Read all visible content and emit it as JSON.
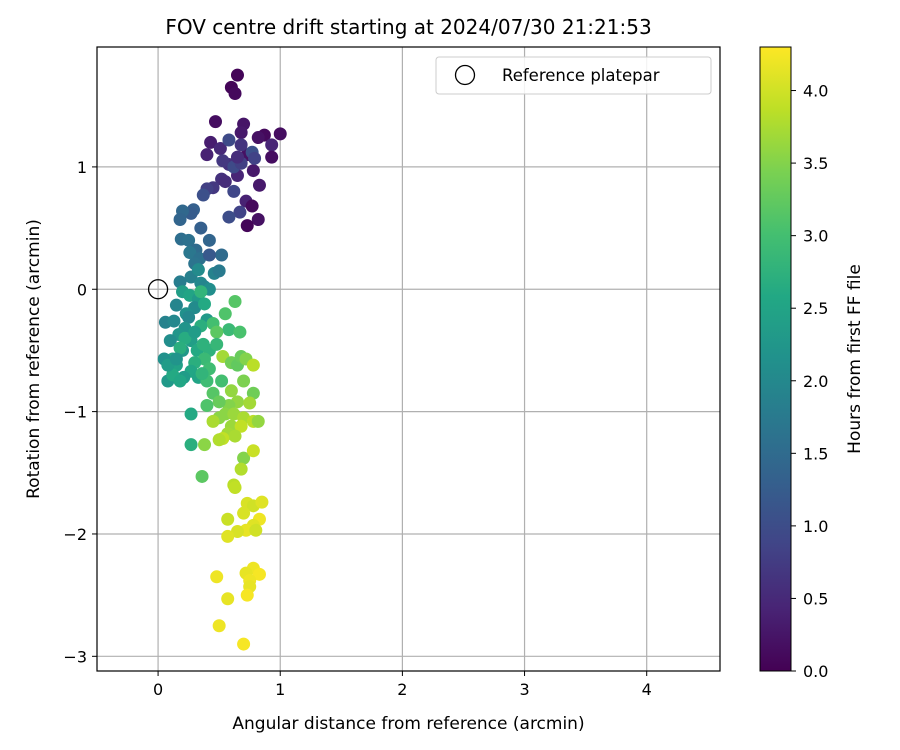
{
  "chart_data": {
    "type": "scatter",
    "title": "FOV centre drift starting at 2024/07/30 21:21:53",
    "xlabel": "Angular distance from reference (arcmin)",
    "ylabel": "Rotation from reference (arcmin)",
    "xlim": [
      -0.5,
      4.6
    ],
    "ylim": [
      -3.12,
      1.98
    ],
    "xticks": [
      0,
      1,
      2,
      3,
      4
    ],
    "yticks": [
      -3,
      -2,
      -1,
      0,
      1
    ],
    "xtick_labels": [
      "0",
      "1",
      "2",
      "3",
      "4"
    ],
    "ytick_labels": [
      "−3",
      "−2",
      "−1",
      "0",
      "1"
    ],
    "grid": true,
    "legend": {
      "placement": "top-right",
      "label": "Reference platepar"
    },
    "reference_point": {
      "x": 0,
      "y": 0
    },
    "colorbar": {
      "label": "Hours from first FF file",
      "colormap": "viridis",
      "range": [
        0.0,
        4.3
      ],
      "ticks": [
        0.0,
        0.5,
        1.0,
        1.5,
        2.0,
        2.5,
        3.0,
        3.5,
        4.0
      ],
      "tick_labels": [
        "0.0",
        "0.5",
        "1.0",
        "1.5",
        "2.0",
        "2.5",
        "3.0",
        "3.5",
        "4.0"
      ]
    },
    "series": [
      {
        "points": [
          [
            0.65,
            1.75,
            0.05
          ],
          [
            0.6,
            1.65,
            0.05
          ],
          [
            0.63,
            1.6,
            0.1
          ],
          [
            0.47,
            1.37,
            0.15
          ],
          [
            0.7,
            1.35,
            0.25
          ],
          [
            1.0,
            1.27,
            0.15
          ],
          [
            0.87,
            1.26,
            0.1
          ],
          [
            0.82,
            1.24,
            0.2
          ],
          [
            0.68,
            1.28,
            0.3
          ],
          [
            0.4,
            1.1,
            0.4
          ],
          [
            0.43,
            1.2,
            0.35
          ],
          [
            0.93,
            1.18,
            0.45
          ],
          [
            0.51,
            1.15,
            0.5
          ],
          [
            0.58,
            1.02,
            0.6
          ],
          [
            0.73,
            1.1,
            0.2
          ],
          [
            0.93,
            1.08,
            0.15
          ],
          [
            0.78,
            0.97,
            0.3
          ],
          [
            0.65,
            0.93,
            0.45
          ],
          [
            0.52,
            0.9,
            0.6
          ],
          [
            0.45,
            0.83,
            0.7
          ],
          [
            0.83,
            0.85,
            0.3
          ],
          [
            0.62,
            0.8,
            0.9
          ],
          [
            0.82,
            0.57,
            0.2
          ],
          [
            0.72,
            0.72,
            0.4
          ],
          [
            0.67,
            0.63,
            0.85
          ],
          [
            0.58,
            0.59,
            1.0
          ],
          [
            0.55,
            0.88,
            0.55
          ],
          [
            0.4,
            0.82,
            0.8
          ],
          [
            0.77,
            0.68,
            0.1
          ],
          [
            0.73,
            0.52,
            0.05
          ],
          [
            0.53,
            1.05,
            0.7
          ],
          [
            0.62,
            1.0,
            0.95
          ],
          [
            0.58,
            1.22,
            0.95
          ],
          [
            0.68,
            1.03,
            0.8
          ],
          [
            0.68,
            1.18,
            0.65
          ],
          [
            0.77,
            1.12,
            1.05
          ],
          [
            0.79,
            1.07,
            0.85
          ],
          [
            0.65,
            1.08,
            0.55
          ],
          [
            0.37,
            0.77,
            1.05
          ],
          [
            0.29,
            0.65,
            1.3
          ],
          [
            0.27,
            0.62,
            1.25
          ],
          [
            0.35,
            0.5,
            1.3
          ],
          [
            0.42,
            0.4,
            1.4
          ],
          [
            0.2,
            0.64,
            1.45
          ],
          [
            0.18,
            0.57,
            1.4
          ],
          [
            0.19,
            0.41,
            1.55
          ],
          [
            0.25,
            0.4,
            1.6
          ],
          [
            0.31,
            0.32,
            1.5
          ],
          [
            0.26,
            0.3,
            1.7
          ],
          [
            0.34,
            0.25,
            1.6
          ],
          [
            0.3,
            0.21,
            1.65
          ],
          [
            0.52,
            0.28,
            1.5
          ],
          [
            0.27,
            0.1,
            1.85
          ],
          [
            0.35,
            0.05,
            2.0
          ],
          [
            0.18,
            0.06,
            1.8
          ],
          [
            0.46,
            0.13,
            1.9
          ],
          [
            0.38,
            0.02,
            1.95
          ],
          [
            0.42,
            0.0,
            2.1
          ],
          [
            0.2,
            -0.02,
            2.4
          ],
          [
            0.26,
            -0.05,
            2.5
          ],
          [
            0.33,
            -0.08,
            2.3
          ],
          [
            0.15,
            -0.13,
            1.95
          ],
          [
            0.3,
            -0.15,
            2.05
          ],
          [
            0.23,
            -0.2,
            2.15
          ],
          [
            0.38,
            -0.12,
            2.6
          ],
          [
            0.35,
            -0.02,
            2.8
          ],
          [
            0.25,
            -0.23,
            2.0
          ],
          [
            0.4,
            -0.25,
            2.3
          ],
          [
            0.06,
            -0.27,
            1.9
          ],
          [
            0.13,
            -0.26,
            2.0
          ],
          [
            0.45,
            -0.28,
            3.0
          ],
          [
            0.55,
            -0.2,
            3.1
          ],
          [
            0.63,
            -0.1,
            3.15
          ],
          [
            0.58,
            -0.33,
            2.9
          ],
          [
            0.67,
            -0.35,
            3.05
          ],
          [
            0.48,
            -0.35,
            3.2
          ],
          [
            0.35,
            -0.3,
            2.7
          ],
          [
            0.22,
            -0.32,
            2.2
          ],
          [
            0.17,
            -0.37,
            2.25
          ],
          [
            0.27,
            -0.42,
            2.4
          ],
          [
            0.1,
            -0.42,
            2.1
          ],
          [
            0.32,
            -0.5,
            2.6
          ],
          [
            0.2,
            -0.5,
            2.3
          ],
          [
            0.42,
            -0.5,
            2.75
          ],
          [
            0.12,
            -0.57,
            2.5
          ],
          [
            0.05,
            -0.57,
            2.15
          ],
          [
            0.38,
            -0.57,
            2.9
          ],
          [
            0.3,
            -0.6,
            2.7
          ],
          [
            0.15,
            -0.62,
            2.45
          ],
          [
            0.27,
            -0.67,
            2.55
          ],
          [
            0.21,
            -0.72,
            2.35
          ],
          [
            0.08,
            -0.75,
            2.3
          ],
          [
            0.12,
            -0.7,
            2.6
          ],
          [
            0.33,
            -0.72,
            2.5
          ],
          [
            0.18,
            -0.75,
            2.55
          ],
          [
            0.4,
            -0.75,
            2.95
          ],
          [
            0.22,
            -0.4,
            2.65
          ],
          [
            0.48,
            -0.45,
            2.85
          ],
          [
            0.53,
            -0.55,
            3.7
          ],
          [
            0.6,
            -0.6,
            3.35
          ],
          [
            0.65,
            -0.62,
            3.25
          ],
          [
            0.68,
            -0.55,
            3.3
          ],
          [
            0.72,
            -0.57,
            3.5
          ],
          [
            0.78,
            -0.62,
            3.85
          ],
          [
            0.7,
            -0.75,
            3.45
          ],
          [
            0.6,
            -0.83,
            3.6
          ],
          [
            0.52,
            -0.75,
            3.0
          ],
          [
            0.42,
            -0.65,
            2.95
          ],
          [
            0.36,
            -0.69,
            2.8
          ],
          [
            0.45,
            -0.85,
            3.15
          ],
          [
            0.78,
            -0.85,
            3.35
          ],
          [
            0.65,
            -0.92,
            3.6
          ],
          [
            0.75,
            -0.93,
            3.7
          ],
          [
            0.58,
            -0.95,
            3.5
          ],
          [
            0.5,
            -0.92,
            3.3
          ],
          [
            0.4,
            -0.95,
            3.1
          ],
          [
            0.55,
            -1.02,
            3.55
          ],
          [
            0.62,
            -1.02,
            3.65
          ],
          [
            0.7,
            -1.05,
            3.75
          ],
          [
            0.5,
            -1.05,
            3.55
          ],
          [
            0.45,
            -1.08,
            3.75
          ],
          [
            0.6,
            -1.12,
            3.65
          ],
          [
            0.68,
            -1.12,
            3.9
          ],
          [
            0.78,
            -1.08,
            3.85
          ],
          [
            0.82,
            -1.08,
            3.6
          ],
          [
            0.57,
            -1.18,
            3.7
          ],
          [
            0.63,
            -1.2,
            3.75
          ],
          [
            0.53,
            -1.22,
            3.9
          ],
          [
            0.5,
            -1.23,
            3.8
          ],
          [
            0.38,
            -1.27,
            3.55
          ],
          [
            0.27,
            -1.27,
            2.7
          ],
          [
            0.27,
            -1.02,
            2.6
          ],
          [
            0.7,
            -1.38,
            3.5
          ],
          [
            0.78,
            -1.32,
            3.95
          ],
          [
            0.68,
            -1.47,
            3.8
          ],
          [
            0.62,
            -1.6,
            3.85
          ],
          [
            0.36,
            -1.53,
            3.2
          ],
          [
            0.63,
            -1.62,
            3.9
          ],
          [
            0.73,
            -1.75,
            4.05
          ],
          [
            0.78,
            -1.77,
            4.0
          ],
          [
            0.85,
            -1.74,
            4.1
          ],
          [
            0.7,
            -1.83,
            4.05
          ],
          [
            0.57,
            -1.88,
            3.95
          ],
          [
            0.83,
            -1.88,
            4.2
          ],
          [
            0.78,
            -1.93,
            4.1
          ],
          [
            0.72,
            -1.97,
            4.15
          ],
          [
            0.65,
            -1.98,
            4.05
          ],
          [
            0.57,
            -2.02,
            4.1
          ],
          [
            0.8,
            -1.97,
            4.0
          ],
          [
            0.78,
            -2.28,
            4.2
          ],
          [
            0.72,
            -2.32,
            4.15
          ],
          [
            0.83,
            -2.33,
            4.25
          ],
          [
            0.75,
            -2.38,
            4.2
          ],
          [
            0.48,
            -2.35,
            4.2
          ],
          [
            0.75,
            -2.43,
            4.15
          ],
          [
            0.57,
            -2.53,
            4.15
          ],
          [
            0.73,
            -2.5,
            4.25
          ],
          [
            0.5,
            -2.75,
            4.2
          ],
          [
            0.7,
            -2.9,
            4.25
          ],
          [
            0.42,
            0.28,
            1.2
          ],
          [
            0.5,
            0.15,
            1.75
          ],
          [
            0.33,
            0.16,
            2.05
          ],
          [
            0.3,
            -0.35,
            2.35
          ],
          [
            0.18,
            -0.48,
            2.7
          ],
          [
            0.37,
            -0.45,
            2.75
          ],
          [
            0.08,
            -0.62,
            2.35
          ],
          [
            0.15,
            -0.57,
            2.2
          ]
        ]
      }
    ]
  }
}
